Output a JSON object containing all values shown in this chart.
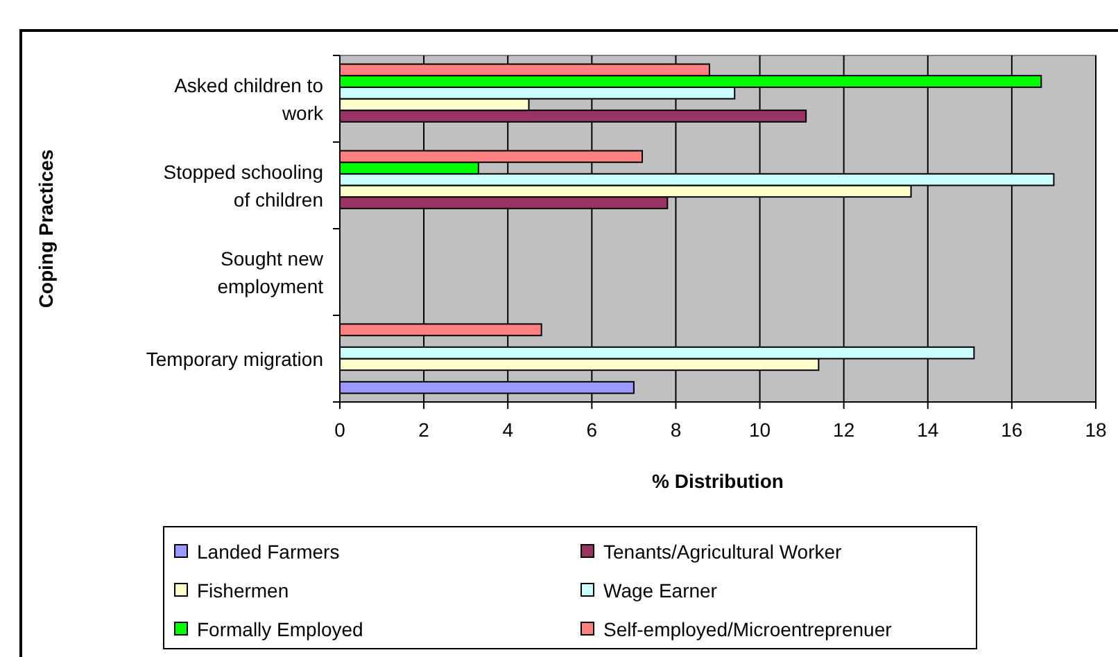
{
  "chart_data": {
    "type": "bar",
    "orientation": "horizontal",
    "xlabel": "% Distribution",
    "ylabel": "Coping Practices",
    "categories": [
      "Asked children to work",
      "Stopped schooling of children",
      "Sought new employment",
      "Temporary migration"
    ],
    "series": [
      {
        "name": "Landed Farmers",
        "color": "#9999ff",
        "values": [
          null,
          null,
          null,
          7.0
        ]
      },
      {
        "name": "Tenants/Agricultural Worker",
        "color": "#993366",
        "values": [
          11.1,
          7.8,
          null,
          null
        ]
      },
      {
        "name": "Fishermen",
        "color": "#ffffcc",
        "values": [
          4.5,
          13.6,
          null,
          11.4
        ]
      },
      {
        "name": "Wage Earner",
        "color": "#ccffff",
        "values": [
          9.4,
          17.0,
          null,
          15.1
        ]
      },
      {
        "name": "Formally Employed",
        "color": "#00ff00",
        "values": [
          16.7,
          3.3,
          null,
          null
        ]
      },
      {
        "name": "Self-employed/Microentreprenuer",
        "color": "#ff8080",
        "values": [
          8.8,
          7.2,
          null,
          4.8
        ]
      }
    ],
    "xlim": [
      0,
      18
    ],
    "xticks": [
      0,
      2,
      4,
      6,
      8,
      10,
      12,
      14,
      16,
      18
    ],
    "grid": "x",
    "legend": "bottom"
  }
}
